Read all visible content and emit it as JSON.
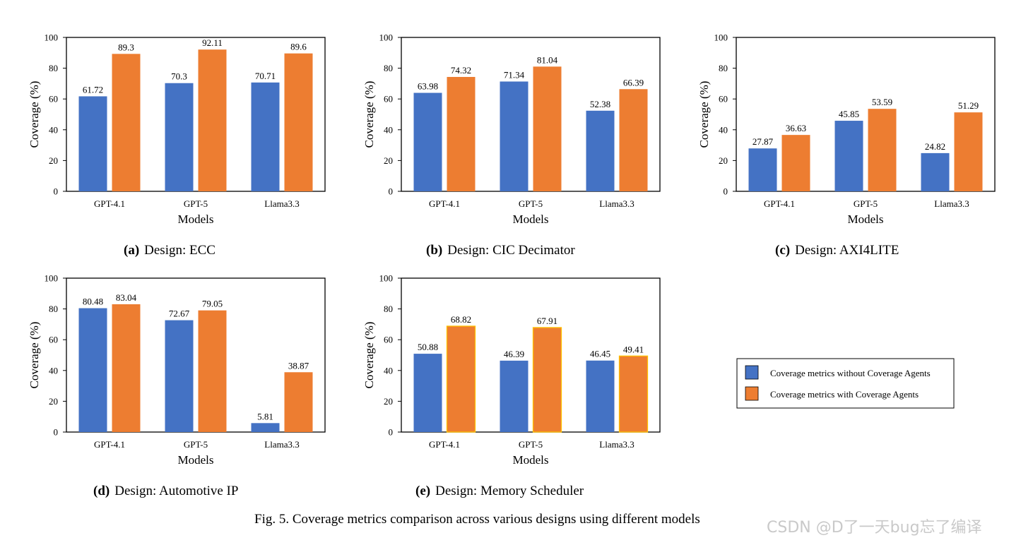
{
  "colors": {
    "without": "#4472c4",
    "with": "#ed7d31",
    "with_outline_e": "#ffc000",
    "axis": "#000000"
  },
  "legend": {
    "items": [
      {
        "label": "Coverage metrics without Coverage Agents",
        "series": "without"
      },
      {
        "label": "Coverage metrics with Coverage Agents",
        "series": "with"
      }
    ]
  },
  "figure_caption": "Fig. 5. Coverage metrics comparison across various designs using different models",
  "watermark": "CSDN @D了一天bug忘了编译",
  "chart_data": [
    {
      "type": "bar",
      "id": "a",
      "caption_prefix": "(a)",
      "caption": "Design: ECC",
      "categories": [
        "GPT-4.1",
        "GPT-5",
        "Llama3.3"
      ],
      "series": [
        {
          "name": "Coverage metrics without Coverage Agents",
          "key": "without",
          "values": [
            61.72,
            70.3,
            70.71
          ],
          "labels": [
            "61.72",
            "70.3",
            "70.71"
          ]
        },
        {
          "name": "Coverage metrics with Coverage Agents",
          "key": "with",
          "values": [
            89.3,
            92.11,
            89.6
          ],
          "labels": [
            "89.3",
            "92.11",
            "89.6"
          ]
        }
      ],
      "xlabel": "Models",
      "ylabel": "Coverage (%)",
      "ylim": [
        0,
        100
      ],
      "yticks": [
        "0",
        "20",
        "40",
        "60",
        "80",
        "100"
      ]
    },
    {
      "type": "bar",
      "id": "b",
      "caption_prefix": "(b)",
      "caption": "Design: CIC Decimator",
      "categories": [
        "GPT-4.1",
        "GPT-5",
        "Llama3.3"
      ],
      "series": [
        {
          "name": "Coverage metrics without Coverage Agents",
          "key": "without",
          "values": [
            63.98,
            71.34,
            52.38
          ],
          "labels": [
            "63.98",
            "71.34",
            "52.38"
          ]
        },
        {
          "name": "Coverage metrics with Coverage Agents",
          "key": "with",
          "values": [
            74.32,
            81.04,
            66.39
          ],
          "labels": [
            "74.32",
            "81.04",
            "66.39"
          ]
        }
      ],
      "xlabel": "Models",
      "ylabel": "Coverage (%)",
      "ylim": [
        0,
        100
      ],
      "yticks": [
        "0",
        "20",
        "40",
        "60",
        "80",
        "100"
      ]
    },
    {
      "type": "bar",
      "id": "c",
      "caption_prefix": "(c)",
      "caption": "Design: AXI4LITE",
      "categories": [
        "GPT-4.1",
        "GPT-5",
        "Llama3.3"
      ],
      "series": [
        {
          "name": "Coverage metrics without Coverage Agents",
          "key": "without",
          "values": [
            27.87,
            45.85,
            24.82
          ],
          "labels": [
            "27.87",
            "45.85",
            "24.82"
          ]
        },
        {
          "name": "Coverage metrics with Coverage Agents",
          "key": "with",
          "values": [
            36.63,
            53.59,
            51.29
          ],
          "labels": [
            "36.63",
            "53.59",
            "51.29"
          ]
        }
      ],
      "xlabel": "Models",
      "ylabel": "Coverage (%)",
      "ylim": [
        0,
        100
      ],
      "yticks": [
        "0",
        "20",
        "40",
        "60",
        "80",
        "100"
      ]
    },
    {
      "type": "bar",
      "id": "d",
      "caption_prefix": "(d)",
      "caption": "Design: Automotive IP",
      "categories": [
        "GPT-4.1",
        "GPT-5",
        "Llama3.3"
      ],
      "series": [
        {
          "name": "Coverage metrics without Coverage Agents",
          "key": "without",
          "values": [
            80.48,
            72.67,
            5.81
          ],
          "labels": [
            "80.48",
            "72.67",
            "5.81"
          ]
        },
        {
          "name": "Coverage metrics with Coverage Agents",
          "key": "with",
          "values": [
            83.04,
            79.05,
            38.87
          ],
          "labels": [
            "83.04",
            "79.05",
            "38.87"
          ]
        }
      ],
      "xlabel": "Models",
      "ylabel": "Coverage (%)",
      "ylim": [
        0,
        100
      ],
      "yticks": [
        "0",
        "20",
        "40",
        "60",
        "80",
        "100"
      ]
    },
    {
      "type": "bar",
      "id": "e",
      "caption_prefix": "(e)",
      "caption": "Design: Memory Scheduler",
      "categories": [
        "GPT-4.1",
        "GPT-5",
        "Llama3.3"
      ],
      "series": [
        {
          "name": "Coverage metrics without Coverage Agents",
          "key": "without",
          "values": [
            50.88,
            46.39,
            46.45
          ],
          "labels": [
            "50.88",
            "46.39",
            "46.45"
          ]
        },
        {
          "name": "Coverage metrics with Coverage Agents",
          "key": "with",
          "values": [
            68.82,
            67.91,
            49.41
          ],
          "labels": [
            "68.82",
            "67.91",
            "49.41"
          ]
        }
      ],
      "xlabel": "Models",
      "ylabel": "Coverage (%)",
      "ylim": [
        0,
        100
      ],
      "yticks": [
        "0",
        "20",
        "40",
        "60",
        "80",
        "100"
      ]
    }
  ]
}
